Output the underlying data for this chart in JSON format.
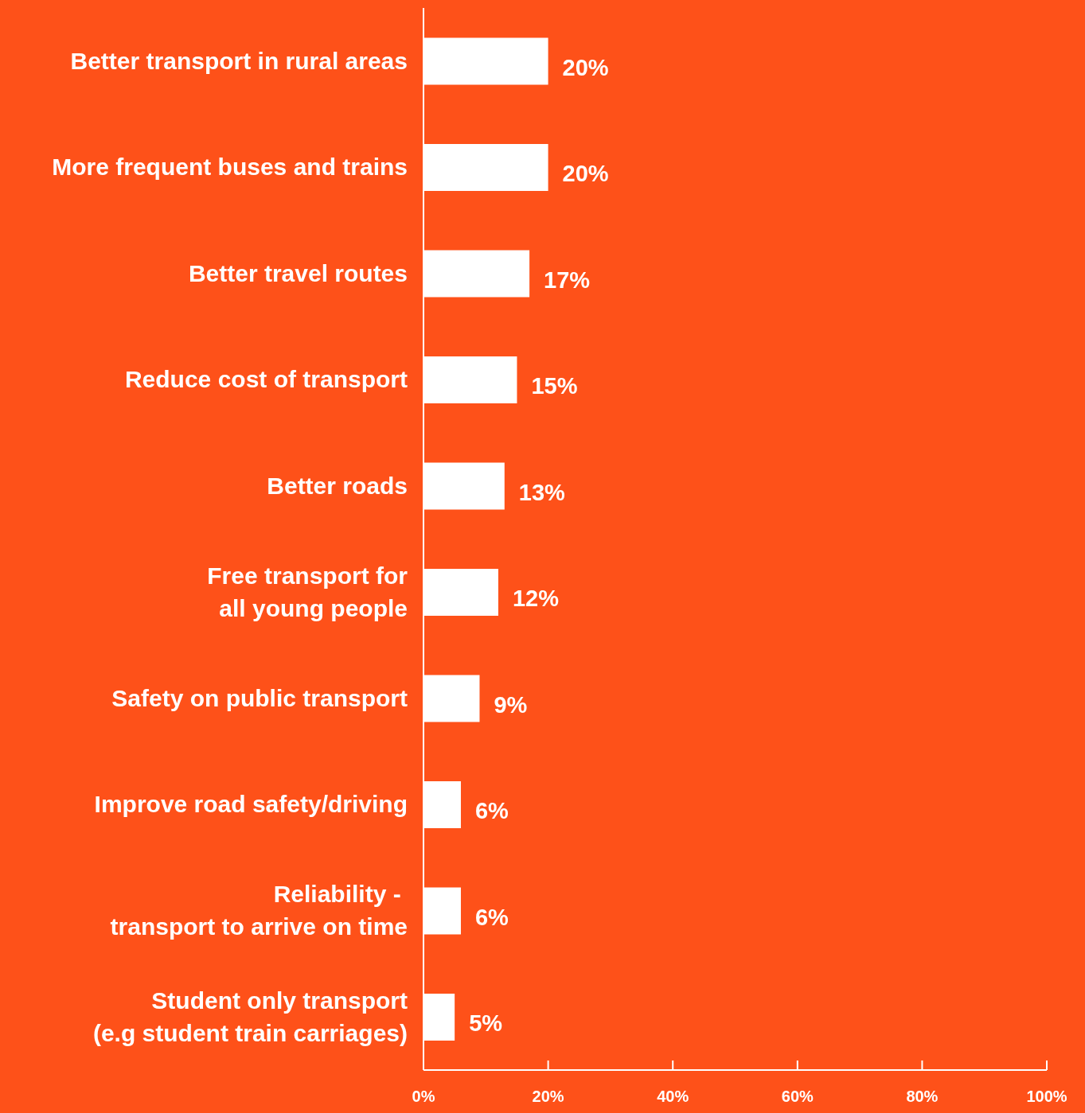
{
  "chart_data": {
    "type": "bar",
    "orientation": "horizontal",
    "categories": [
      "Better transport in rural areas",
      "More frequent buses and trains",
      "Better travel routes",
      "Reduce cost of transport",
      "Better roads",
      "Free transport for\nall young people",
      "Safety on public transport",
      "Improve road safety/driving",
      "Reliability - \ntransport to arrive on time",
      "Student only transport\n(e.g student train carriages)"
    ],
    "values": [
      20,
      20,
      17,
      15,
      13,
      12,
      9,
      6,
      6,
      5
    ],
    "value_labels": [
      "20%",
      "20%",
      "17%",
      "15%",
      "13%",
      "12%",
      "9%",
      "6%",
      "6%",
      "5%"
    ],
    "color": "#ffffff",
    "xlim": [
      0,
      100
    ],
    "xticks": [
      {
        "value": 0,
        "label": "0%"
      },
      {
        "value": 20,
        "label": "20%"
      },
      {
        "value": 40,
        "label": "40%"
      },
      {
        "value": 60,
        "label": "60%"
      },
      {
        "value": 80,
        "label": "80%"
      },
      {
        "value": 100,
        "label": "100%"
      }
    ],
    "grid": false,
    "legend": false
  }
}
